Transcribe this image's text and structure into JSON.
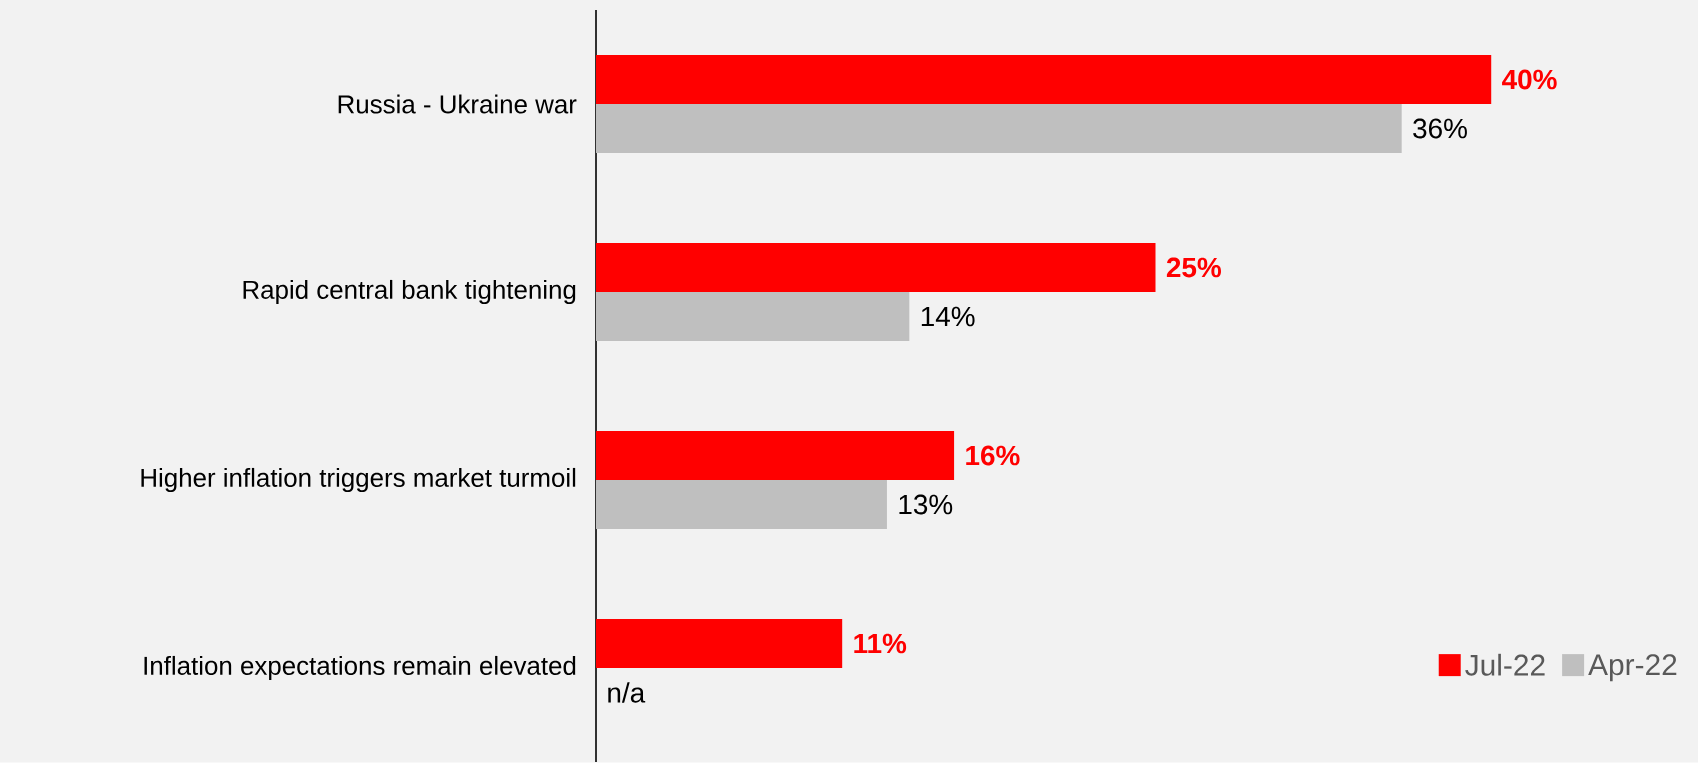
{
  "chart_data": {
    "type": "bar",
    "orientation": "horizontal",
    "categories": [
      "Russia - Ukraine war",
      "Rapid central bank tightening",
      "Higher inflation triggers market turmoil",
      "Inflation expectations remain elevated"
    ],
    "series": [
      {
        "name": "Jul-22",
        "color": "#ff0000",
        "values": [
          40,
          25,
          16,
          11
        ],
        "value_labels": [
          "40%",
          "25%",
          "16%",
          "11%"
        ]
      },
      {
        "name": "Apr-22",
        "color": "#bfbfbf",
        "values": [
          36,
          14,
          13,
          null
        ],
        "value_labels": [
          "36%",
          "14%",
          "13%",
          "n/a"
        ]
      }
    ],
    "legend": "bottom right"
  }
}
